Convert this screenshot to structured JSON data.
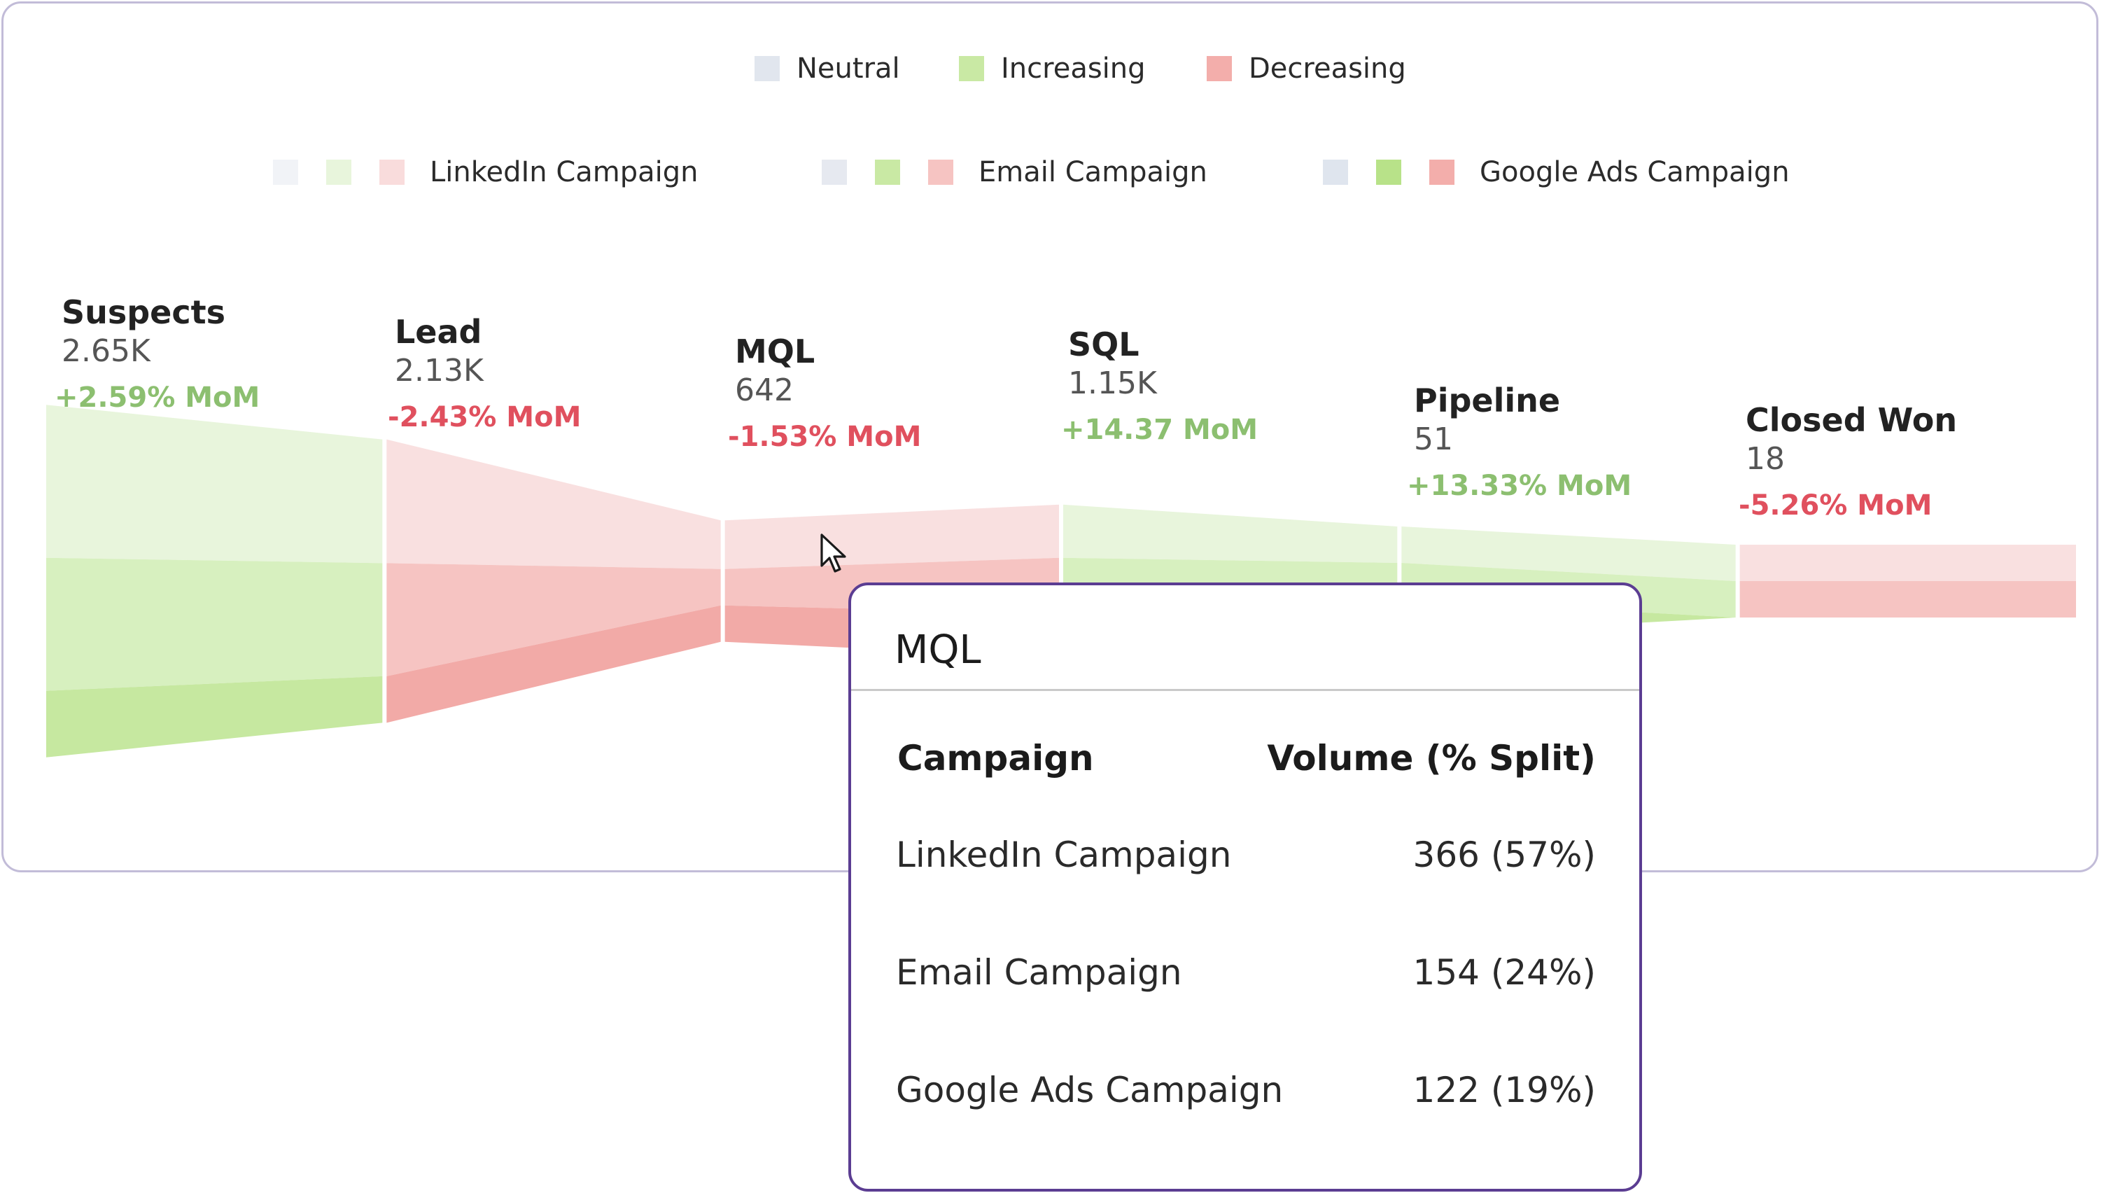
{
  "legend_status": [
    {
      "label": "Neutral",
      "color": "#e1e6ee"
    },
    {
      "label": "Increasing",
      "color": "#c9e9a4"
    },
    {
      "label": "Decreasing",
      "color": "#f3aeab"
    }
  ],
  "legend_campaigns": [
    {
      "label": "LinkedIn Campaign",
      "colors": [
        "#f1f3f7",
        "#e8f5dc",
        "#f9dcdc"
      ]
    },
    {
      "label": "Email Campaign",
      "colors": [
        "#e6e9f0",
        "#c9e9a4",
        "#f6c4c2"
      ]
    },
    {
      "label": "Google Ads Campaign",
      "colors": [
        "#dfe5ee",
        "#b8e289",
        "#f3aeab"
      ]
    }
  ],
  "chart_data": {
    "type": "area",
    "stages": [
      "Suspects",
      "Lead",
      "MQL",
      "SQL",
      "Pipeline",
      "Closed Won"
    ],
    "totals": [
      "2.65K",
      "2.13K",
      "642",
      "1.15K",
      "51",
      "18"
    ],
    "mom": [
      "+2.59% MoM",
      "-2.43% MoM",
      "-1.53% MoM",
      "+14.37 MoM",
      "+13.33% MoM",
      "-5.26% MoM"
    ],
    "trend": [
      "increasing",
      "decreasing",
      "decreasing",
      "increasing",
      "increasing",
      "decreasing"
    ],
    "series": [
      {
        "name": "LinkedIn Campaign",
        "values": [
          1150,
          930,
          366,
          400,
          20,
          6
        ]
      },
      {
        "name": "Email Campaign",
        "values": [
          1000,
          850,
          154,
          420,
          20,
          12
        ]
      },
      {
        "name": "Google Ads Campaign",
        "values": [
          500,
          350,
          122,
          330,
          11,
          0
        ]
      }
    ]
  },
  "tooltip": {
    "title": "MQL",
    "col_campaign": "Campaign",
    "col_volume": "Volume (% Split)",
    "rows": [
      {
        "campaign": "LinkedIn Campaign",
        "volume": "366 (57%)"
      },
      {
        "campaign": "Email Campaign",
        "volume": "154 (24%)"
      },
      {
        "campaign": "Google Ads Campaign",
        "volume": "122 (19%)"
      }
    ]
  }
}
